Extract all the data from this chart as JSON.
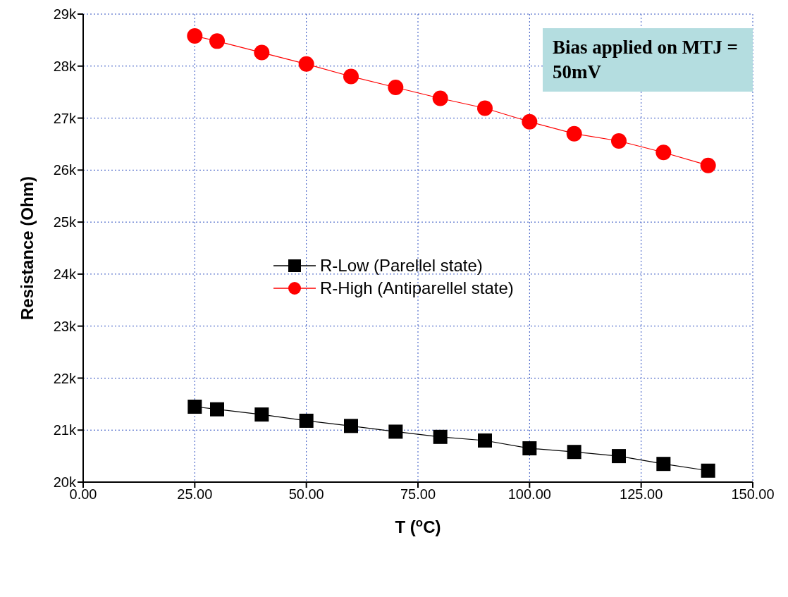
{
  "chart_data": {
    "type": "line",
    "xlabel": "T ($^{o}$C)",
    "ylabel": "Resistance (Ohm)",
    "annotations": [
      "Bias applied on MTJ = 50mV"
    ],
    "x": [
      25,
      30,
      40,
      50,
      60,
      70,
      80,
      90,
      100,
      110,
      120,
      130,
      140
    ],
    "series": [
      {
        "name": "R-Low (Parellel state)",
        "color": "#000000",
        "marker": "square",
        "values": [
          21450,
          21400,
          21300,
          21180,
          21080,
          20970,
          20870,
          20800,
          20650,
          20580,
          20500,
          20350,
          20220
        ]
      },
      {
        "name": "R-High (Antiparellel state)",
        "color": "#ff0000",
        "marker": "circle",
        "values": [
          28580,
          28480,
          28260,
          28040,
          27800,
          27590,
          27380,
          27190,
          26930,
          26700,
          26560,
          26340,
          26090
        ]
      }
    ],
    "xlim": [
      0,
      150
    ],
    "xticks": [
      {
        "value": 0,
        "label": "0.00"
      },
      {
        "value": 25,
        "label": "25.00"
      },
      {
        "value": 50,
        "label": "50.00"
      },
      {
        "value": 75,
        "label": "75.00"
      },
      {
        "value": 100,
        "label": "100.00"
      },
      {
        "value": 125,
        "label": "125.00"
      },
      {
        "value": 150,
        "label": "150.00"
      }
    ],
    "ylim": [
      20000,
      29000
    ],
    "yticks": [
      {
        "value": 20000,
        "label": "20k"
      },
      {
        "value": 21000,
        "label": "21k"
      },
      {
        "value": 22000,
        "label": "22k"
      },
      {
        "value": 23000,
        "label": "23k"
      },
      {
        "value": 24000,
        "label": "24k"
      },
      {
        "value": 25000,
        "label": "25k"
      },
      {
        "value": 26000,
        "label": "26k"
      },
      {
        "value": 27000,
        "label": "27k"
      },
      {
        "value": 28000,
        "label": "28k"
      },
      {
        "value": 29000,
        "label": "29k"
      }
    ],
    "grid": true,
    "legend": "center",
    "line_style": "solid"
  }
}
